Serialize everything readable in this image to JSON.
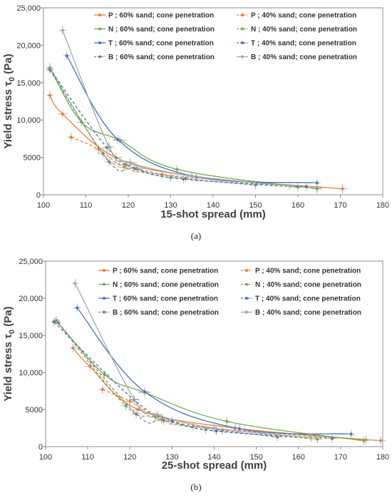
{
  "legend_entries": [
    {
      "label": "P ; 60% sand; cone penetration",
      "color": "#ED7D31",
      "dash": false
    },
    {
      "label": "P ; 40% sand; cone penetration",
      "color": "#ED7D31",
      "dash": true
    },
    {
      "label": "N ; 60% sand; cone penetration",
      "color": "#70AD47",
      "dash": false
    },
    {
      "label": "N ; 40% sand; cone penetration",
      "color": "#70AD47",
      "dash": true
    },
    {
      "label": "T ; 60% sand; cone penetration",
      "color": "#4472C4",
      "dash": false
    },
    {
      "label": "T ; 40% sand; cone penetration",
      "color": "#4472C4",
      "dash": true
    },
    {
      "label": "B ; 60% sand; cone penetration",
      "color": "#7F7F7F",
      "dash": true
    },
    {
      "label": "B ; 40% sand; cone penetration",
      "color": "#A6A6A6",
      "dash": false
    }
  ],
  "chart_data": [
    {
      "type": "scatter",
      "caption": "(a)",
      "xlabel": "15-shot spread (mm)",
      "ylabel_main": "Yield stress τ",
      "ylabel_sub": "0",
      "ylabel_unit": " (Pa)",
      "xlim": [
        100,
        180
      ],
      "ylim": [
        0,
        25000
      ],
      "xticks": [
        "100",
        "110",
        "120",
        "130",
        "140",
        "150",
        "160",
        "170",
        "180"
      ],
      "yticks": [
        "0",
        "5000",
        "10,000",
        "15,000",
        "20,000",
        "25,000"
      ],
      "grid": false,
      "legend": "top-right",
      "series": [
        {
          "name": "P ; 60% sand; cone penetration",
          "x": [
            101.5,
            104.5,
            117,
            135,
            170.5
          ],
          "y": [
            13300,
            10800,
            5000,
            2500,
            800
          ]
        },
        {
          "name": "P ; 40% sand; cone penetration",
          "x": [
            106.5,
            113,
            119,
            128,
            164.5
          ],
          "y": [
            7700,
            6100,
            3700,
            2700,
            900
          ]
        },
        {
          "name": "N ; 60% sand; cone penetration",
          "x": [
            101.5,
            109,
            118,
            131.5,
            164.5
          ],
          "y": [
            17000,
            9700,
            7300,
            3400,
            800
          ]
        },
        {
          "name": "N ; 40% sand; cone penetration",
          "x": [
            101.5,
            114,
            119.5,
            130,
            160
          ],
          "y": [
            17000,
            5500,
            4000,
            2300,
            1000
          ]
        },
        {
          "name": "T ; 60% sand; cone penetration",
          "x": [
            105.5,
            117.5,
            136,
            164.5
          ],
          "y": [
            18600,
            7400,
            2400,
            1600
          ]
        },
        {
          "name": "T ; 40% sand; cone penetration",
          "x": [
            101.5,
            115,
            122,
            133,
            162
          ],
          "y": [
            16800,
            6300,
            3500,
            2100,
            1100
          ]
        },
        {
          "name": "B ; 60% sand; cone penetration",
          "x": [
            101.5,
            115.5,
            121.5,
            133.5,
            150
          ],
          "y": [
            16700,
            4400,
            3500,
            2200,
            1300
          ]
        },
        {
          "name": "B ; 40% sand; cone penetration",
          "x": [
            104.5,
            115.5,
            120.5,
            135,
            158
          ],
          "y": [
            22000,
            6400,
            4300,
            2500,
            1200
          ]
        }
      ]
    },
    {
      "type": "scatter",
      "caption": "(b)",
      "xlabel": "25-shot spread (mm)",
      "ylabel_main": "Yield stress τ",
      "ylabel_sub": "0",
      "ylabel_unit": " (Pa)",
      "xlim": [
        100,
        180
      ],
      "ylim": [
        0,
        25000
      ],
      "xticks": [
        "100",
        "110",
        "120",
        "130",
        "140",
        "150",
        "160",
        "170",
        "180"
      ],
      "yticks": [
        "0",
        "5000",
        "10,000",
        "15,000",
        "20,000",
        "25,000"
      ],
      "grid": false,
      "legend": "top-right",
      "series": [
        {
          "name": "P ; 60% sand; cone penetration",
          "x": [
            106.5,
            110.5,
            122,
            145,
            179.5
          ],
          "y": [
            13300,
            10800,
            5000,
            2500,
            800
          ]
        },
        {
          "name": "P ; 40% sand; cone penetration",
          "x": [
            113.5,
            120,
            127.5,
            135,
            176
          ],
          "y": [
            7700,
            6100,
            3700,
            2700,
            900
          ]
        },
        {
          "name": "N ; 60% sand; cone penetration",
          "x": [
            102.5,
            114,
            123.5,
            143,
            175.5
          ],
          "y": [
            17000,
            9700,
            7300,
            3400,
            800
          ]
        },
        {
          "name": "N ; 40% sand; cone penetration",
          "x": [
            102.5,
            119,
            126,
            138,
            164.5
          ],
          "y": [
            17000,
            5500,
            4000,
            2300,
            1000
          ]
        },
        {
          "name": "T ; 60% sand; cone penetration",
          "x": [
            107.5,
            123.5,
            146,
            172.5
          ],
          "y": [
            18700,
            7400,
            2400,
            1700
          ]
        },
        {
          "name": "T ; 40% sand; cone penetration",
          "x": [
            102,
            121,
            130,
            140.5,
            168
          ],
          "y": [
            16800,
            6300,
            3500,
            2100,
            1100
          ]
        },
        {
          "name": "B ; 60% sand; cone penetration",
          "x": [
            103,
            121.5,
            128,
            142,
            155
          ],
          "y": [
            16700,
            4400,
            3500,
            2200,
            1300
          ]
        },
        {
          "name": "B ; 40% sand; cone penetration",
          "x": [
            107,
            121,
            126.5,
            140,
            163
          ],
          "y": [
            22000,
            6400,
            4300,
            2500,
            1200
          ]
        }
      ]
    }
  ]
}
